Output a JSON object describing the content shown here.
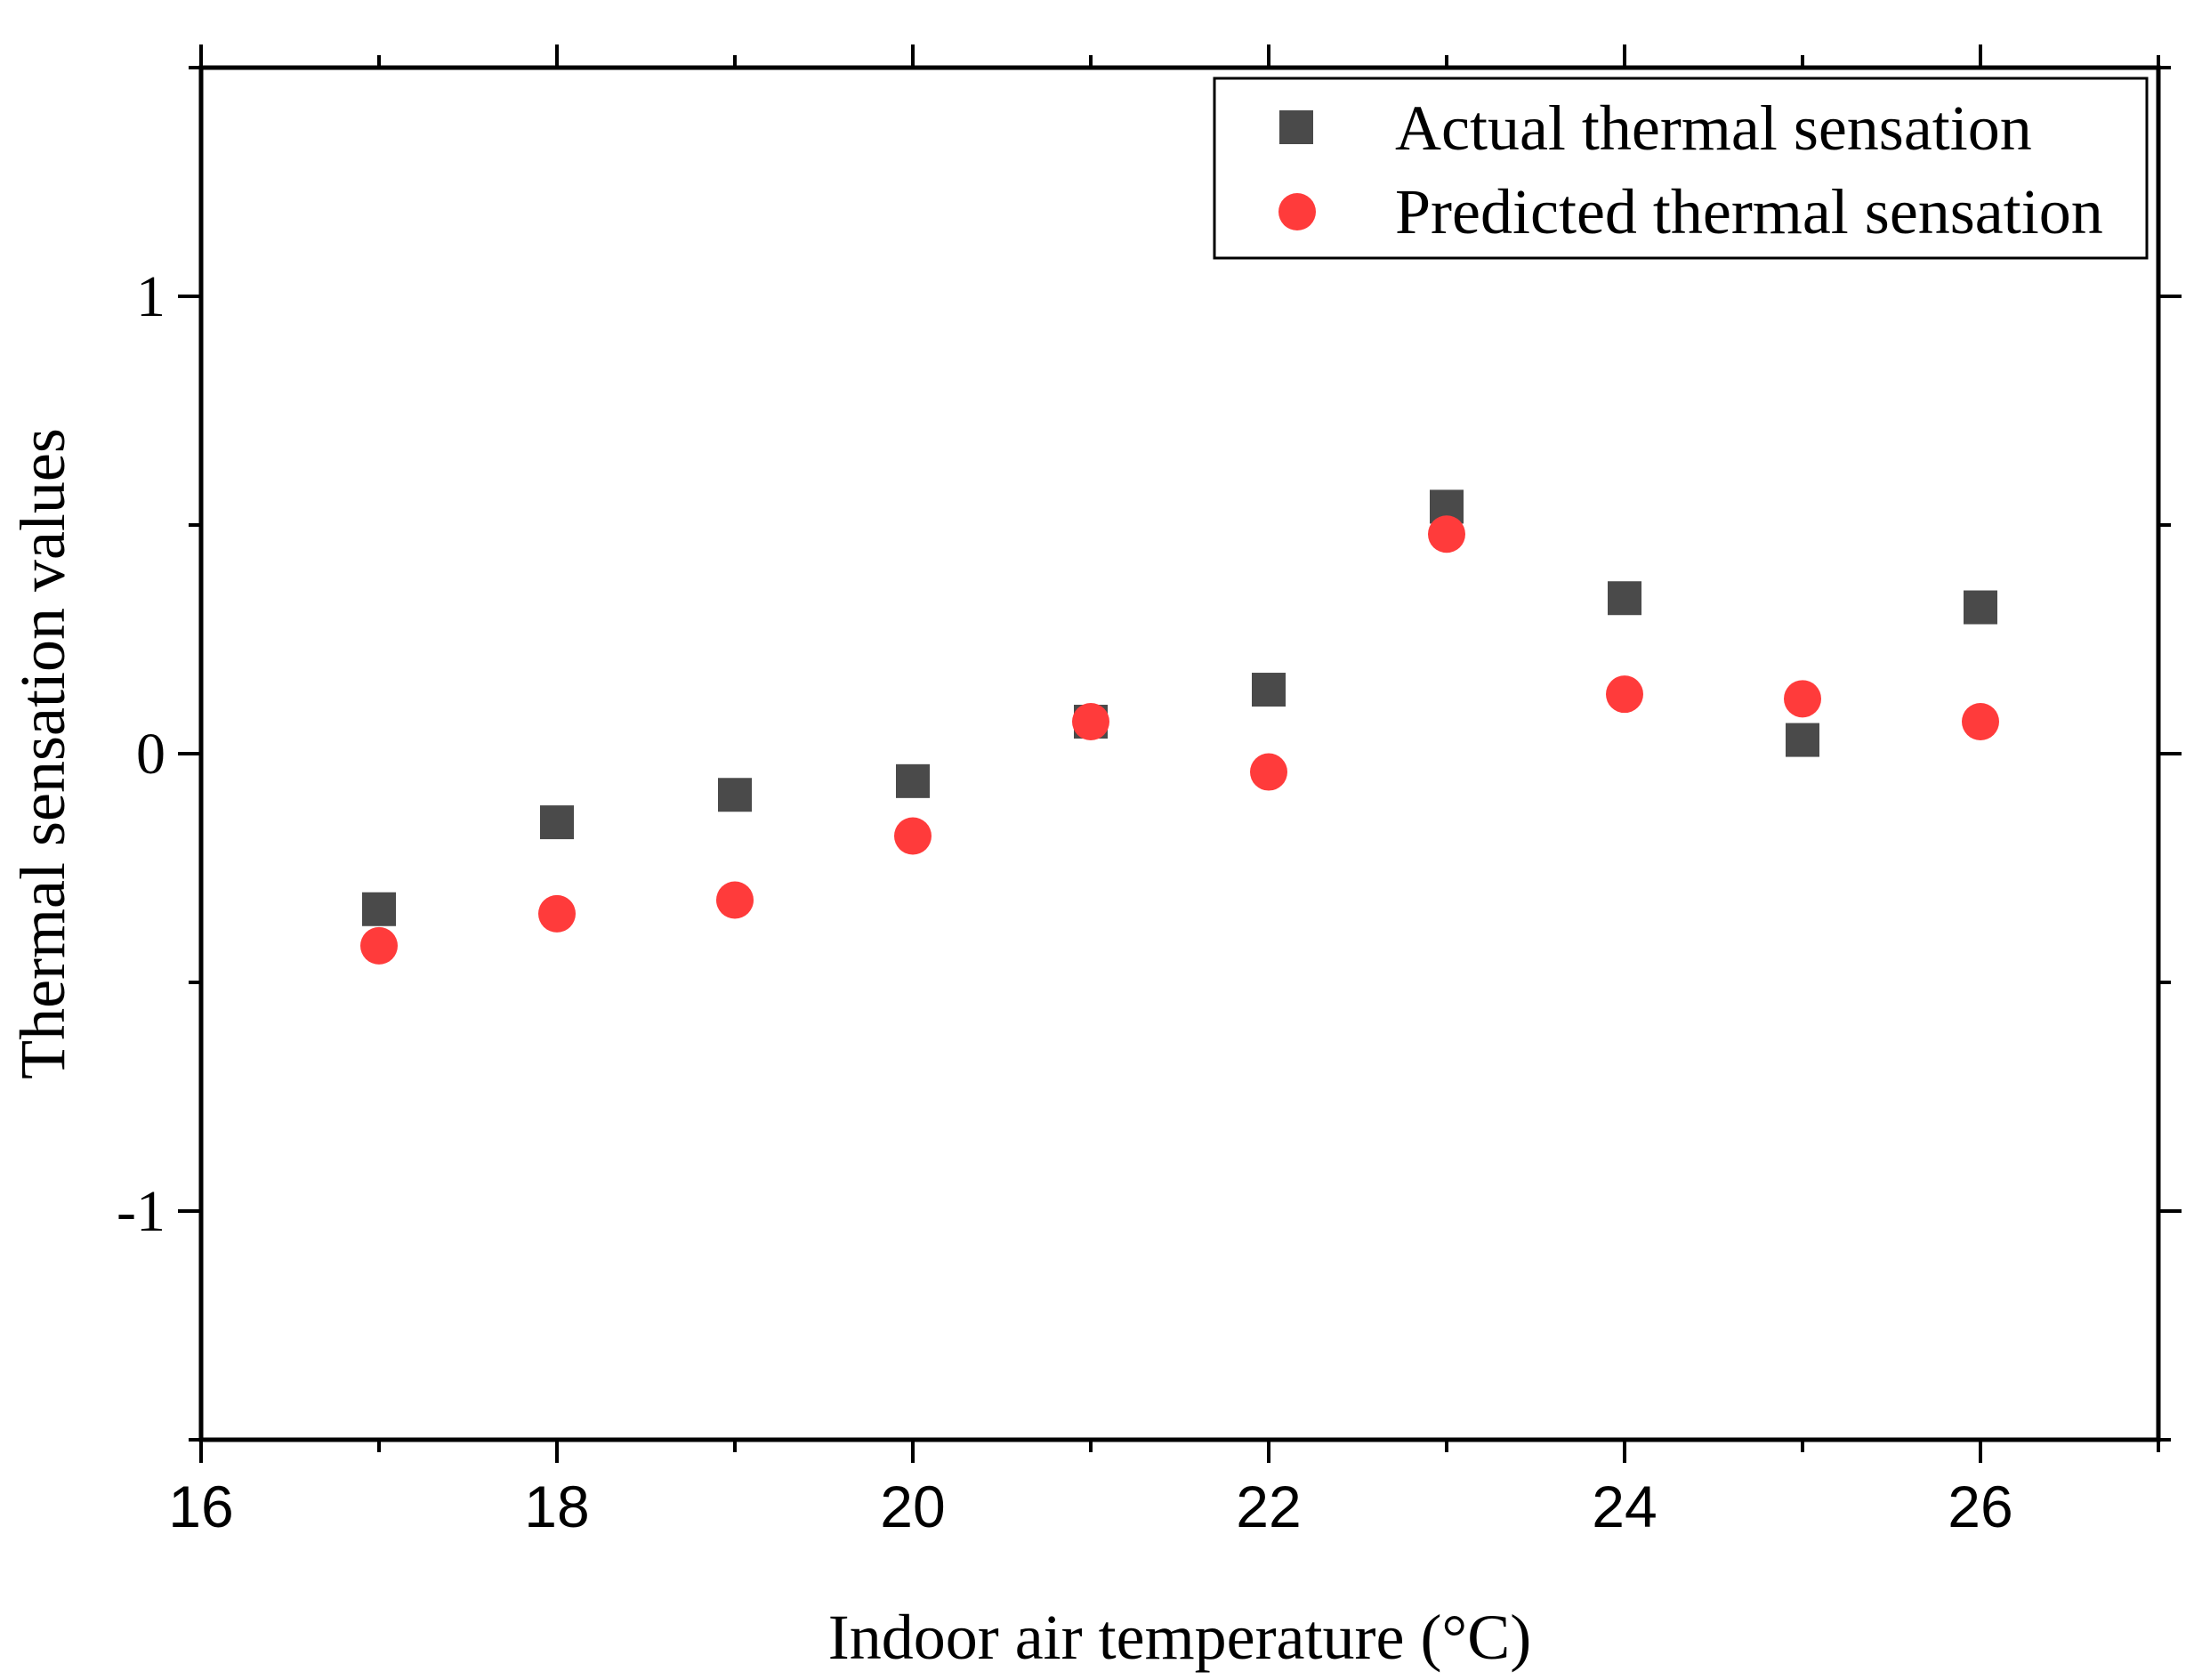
{
  "chart_data": {
    "type": "scatter",
    "title": "",
    "xlabel": "Indoor air temperature (°C)",
    "ylabel": "Thermal sensation values",
    "xlim": [
      16,
      27
    ],
    "ylim": [
      -1.5,
      1.5
    ],
    "x_ticks": [
      16,
      18,
      20,
      22,
      24,
      26
    ],
    "x_tick_labels": [
      "16",
      "18",
      "20",
      "22",
      "24",
      "26"
    ],
    "y_ticks": [
      1,
      0,
      -1
    ],
    "y_tick_labels": [
      "1",
      "0",
      "-1"
    ],
    "grid": false,
    "legend_position": "top-right",
    "series": [
      {
        "name": "Actual thermal sensation",
        "marker": "square",
        "color": "#4a4a4a",
        "x": [
          17,
          18,
          19,
          20,
          21,
          22,
          23,
          24,
          25,
          26
        ],
        "y": [
          -0.34,
          -0.15,
          -0.09,
          -0.06,
          0.07,
          0.14,
          0.54,
          0.34,
          0.03,
          0.32
        ]
      },
      {
        "name": "Predicted thermal sensation",
        "marker": "circle",
        "color": "#ff3b3b",
        "x": [
          17,
          18,
          19,
          20,
          21,
          22,
          23,
          24,
          25,
          26
        ],
        "y": [
          -0.42,
          -0.35,
          -0.32,
          -0.18,
          0.07,
          -0.04,
          0.48,
          0.13,
          0.12,
          0.07
        ]
      }
    ]
  }
}
